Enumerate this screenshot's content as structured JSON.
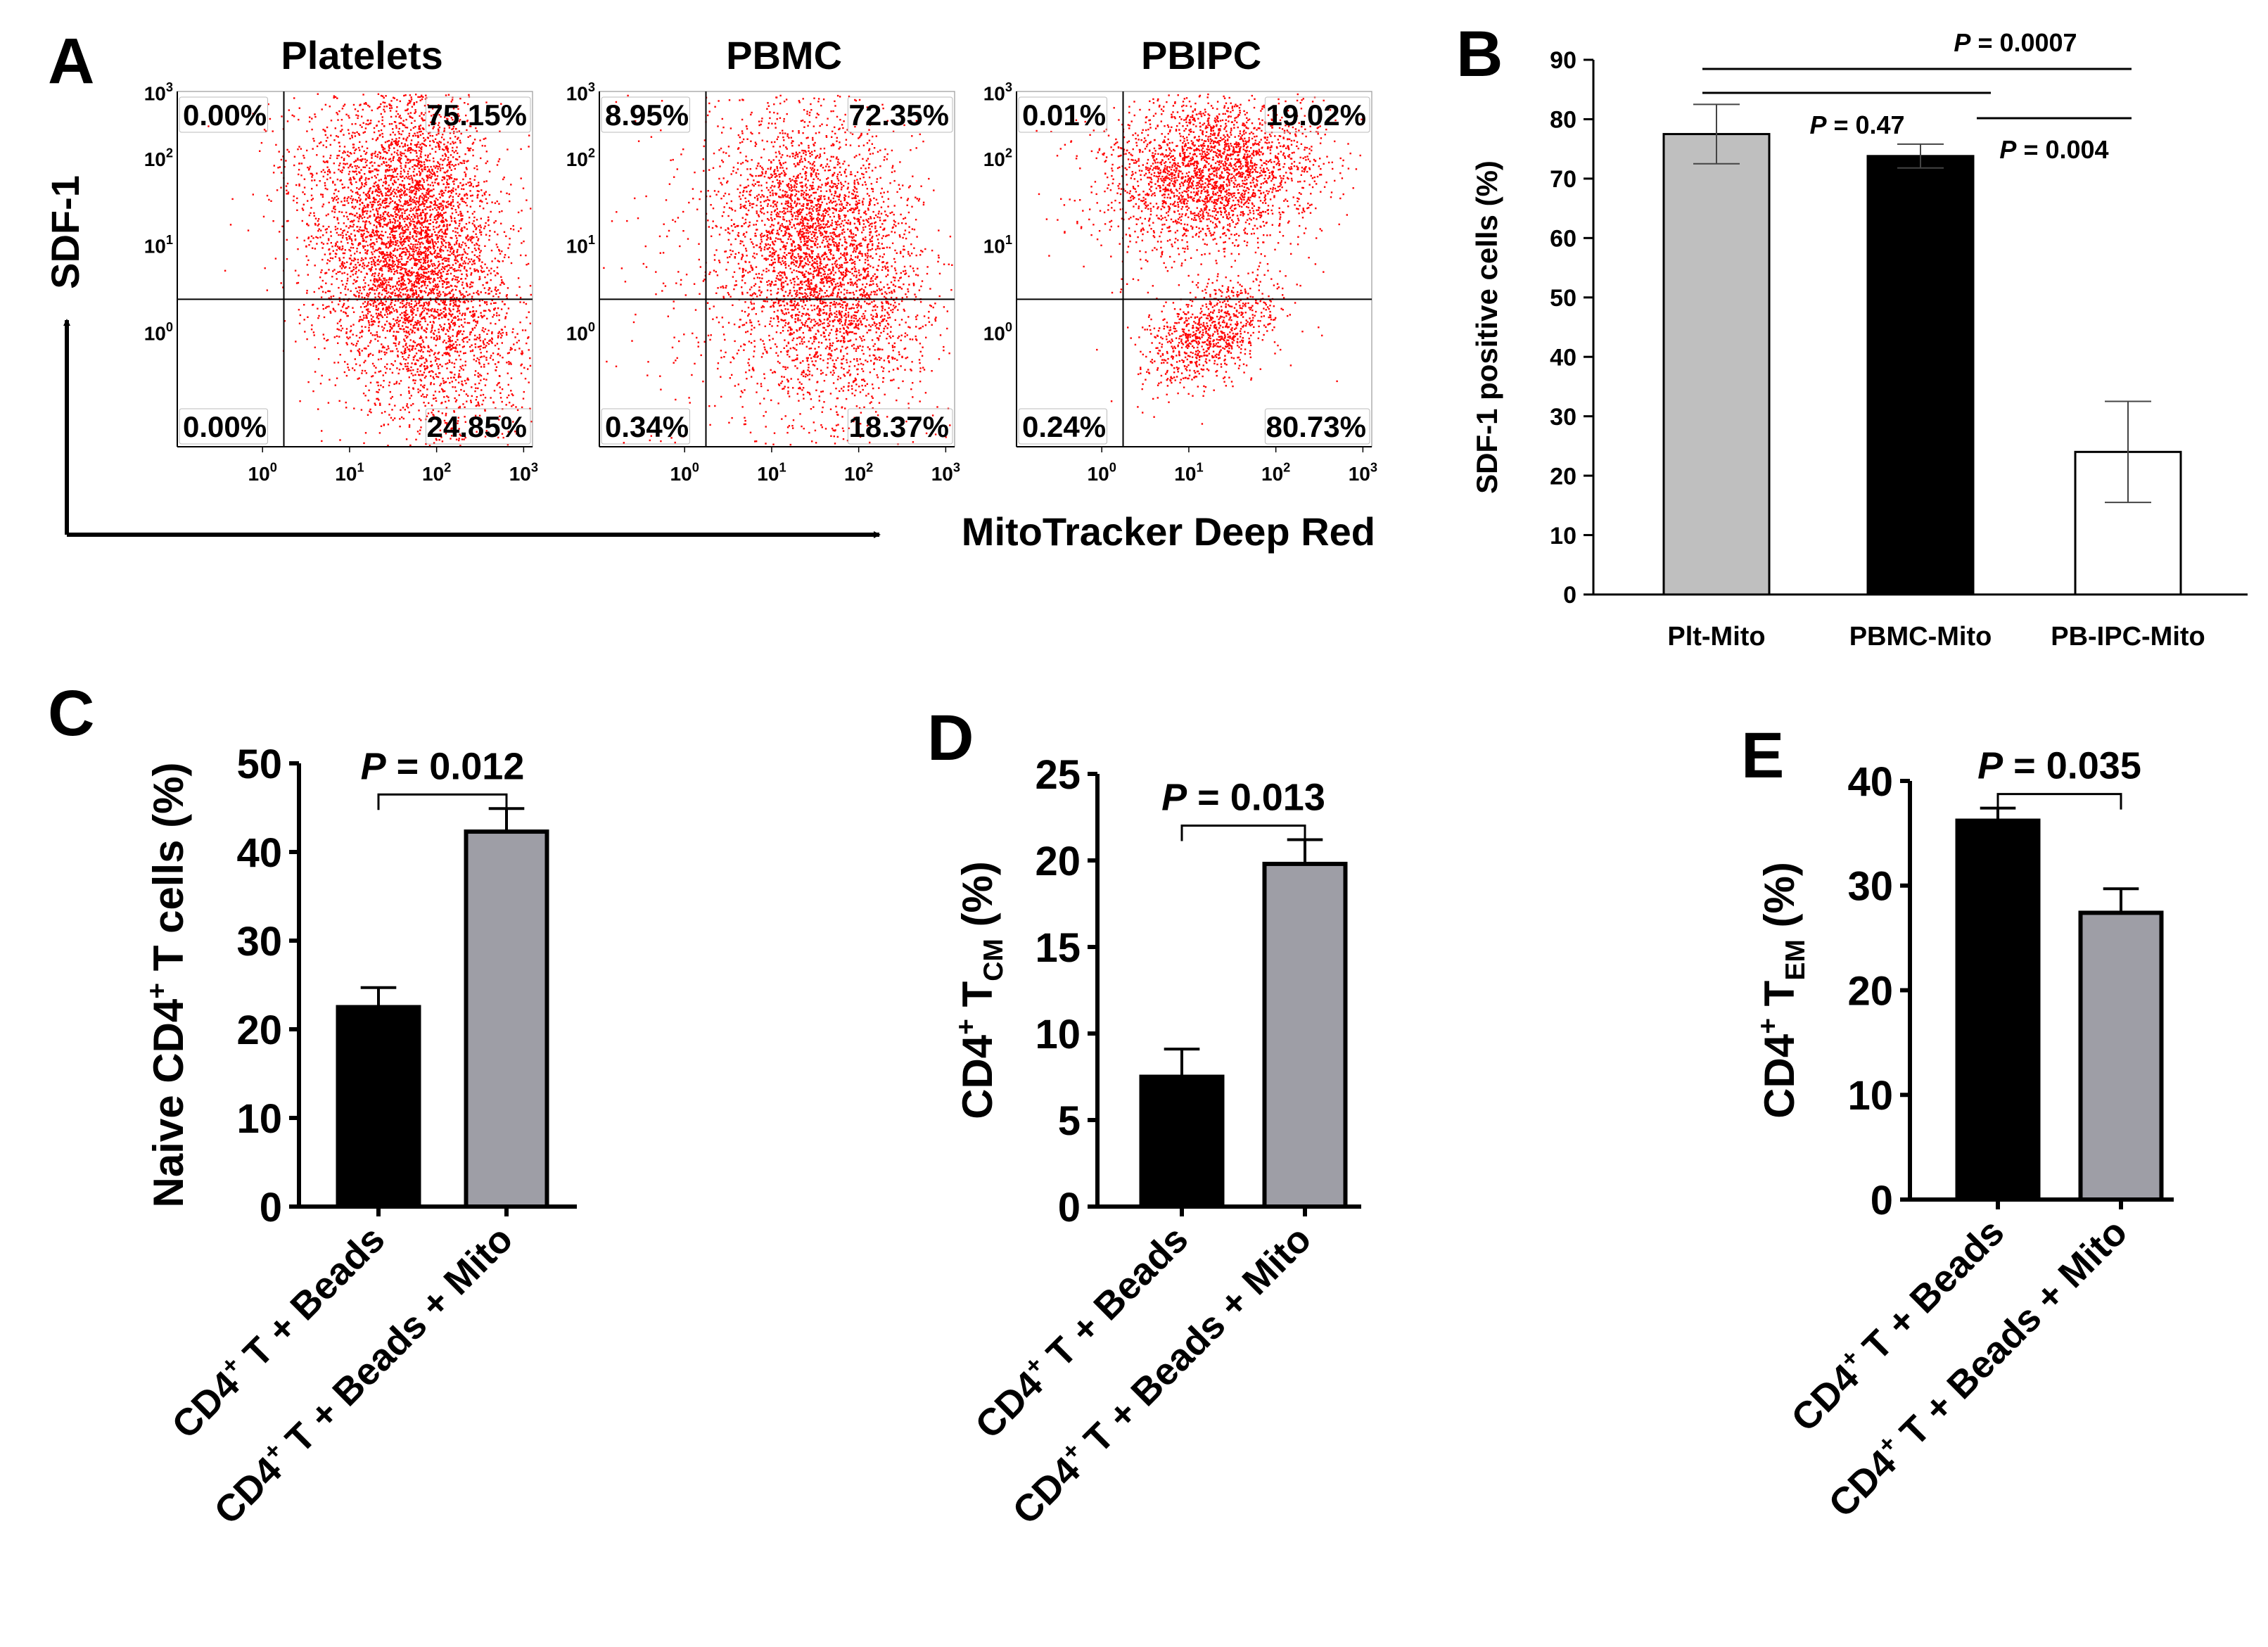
{
  "panel_letters": [
    "A",
    "B",
    "C",
    "D",
    "E"
  ],
  "panel_a": {
    "y_axis_label": "SDF-1",
    "x_axis_label": "MitoTracker Deep Red",
    "tick_labels": [
      {
        "base": "10",
        "exp": "0"
      },
      {
        "base": "10",
        "exp": "1"
      },
      {
        "base": "10",
        "exp": "2"
      },
      {
        "base": "10",
        "exp": "3"
      }
    ],
    "plots": [
      {
        "title": "Platelets",
        "ul": "0.00%",
        "ur": "75.15%",
        "ll": "0.00%",
        "lr": "24.85%"
      },
      {
        "title": "PBMC",
        "ul": "8.95%",
        "ur": "72.35%",
        "ll": "0.34%",
        "lr": "18.37%"
      },
      {
        "title": "PBIPC",
        "ul": "0.01%",
        "ur": "19.02%",
        "ll": "0.24%",
        "lr": "80.73%"
      }
    ],
    "dot_color": "#ff0000"
  },
  "chart_data": [
    {
      "panel": "B",
      "type": "bar",
      "categories": [
        "Plt-Mito",
        "PBMC-Mito",
        "PB-IPC-Mito"
      ],
      "values": [
        77.5,
        73.8,
        24.0
      ],
      "errors": [
        5.0,
        2.0,
        8.5
      ],
      "bar_colors": [
        "#bfbfbf",
        "#000000",
        "#ffffff"
      ],
      "ylabel": "SDF-1 positive cells (%)",
      "ylim": [
        0,
        90
      ],
      "yticks": [
        0,
        10,
        20,
        30,
        40,
        50,
        60,
        70,
        80,
        90
      ],
      "annotations": [
        {
          "italic": "P",
          "rest": " = 0.47",
          "between": [
            "Plt-Mito",
            "PBMC-Mito"
          ]
        },
        {
          "italic": "P",
          "rest": " = 0.0007",
          "between": [
            "Plt-Mito",
            "PB-IPC-Mito"
          ]
        },
        {
          "italic": "P",
          "rest": " = 0.004",
          "between": [
            "PBMC-Mito",
            "PB-IPC-Mito"
          ]
        }
      ]
    },
    {
      "panel": "C",
      "type": "bar",
      "categories": [
        "CD4+ T + Beads",
        "CD4+ T + Beads + Mito"
      ],
      "values": [
        22.5,
        42.3
      ],
      "errors": [
        2.2,
        2.6
      ],
      "bar_colors": [
        "#000000",
        "#9e9ea6"
      ],
      "ylabel": "Naive CD4+ T cells (%)",
      "ylim": [
        0,
        50
      ],
      "yticks": [
        0,
        10,
        20,
        30,
        40,
        50
      ],
      "annotations": [
        {
          "italic": "P",
          "rest": " = 0.012"
        }
      ]
    },
    {
      "panel": "D",
      "type": "bar",
      "categories": [
        "CD4+ T + Beads",
        "CD4+ T + Beads + Mito"
      ],
      "values": [
        7.5,
        19.8
      ],
      "errors": [
        1.6,
        1.4
      ],
      "bar_colors": [
        "#000000",
        "#9e9ea6"
      ],
      "ylabel": "CD4+ TCM (%)",
      "ylim": [
        0,
        25
      ],
      "yticks": [
        0,
        5,
        10,
        15,
        20,
        25
      ],
      "annotations": [
        {
          "italic": "P",
          "rest": " = 0.013"
        }
      ]
    },
    {
      "panel": "E",
      "type": "bar",
      "categories": [
        "CD4+ T + Beads",
        "CD4+ T + Beads + Mito"
      ],
      "values": [
        36.2,
        27.4
      ],
      "errors": [
        1.2,
        2.3
      ],
      "bar_colors": [
        "#000000",
        "#9e9ea6"
      ],
      "ylabel": "CD4+ TEM (%)",
      "ylim": [
        0,
        40
      ],
      "yticks": [
        0,
        10,
        20,
        30,
        40
      ],
      "annotations": [
        {
          "italic": "P",
          "rest": " = 0.035"
        }
      ]
    }
  ]
}
